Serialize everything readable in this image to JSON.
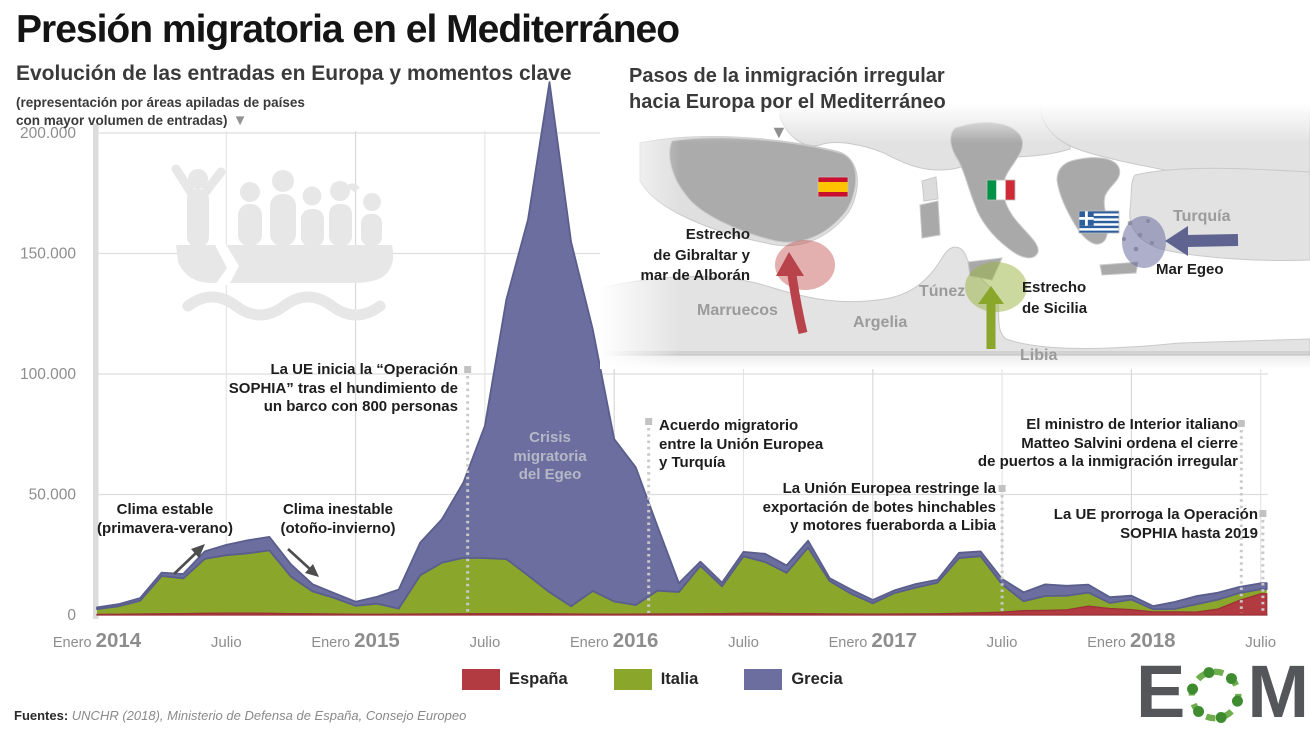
{
  "title": "Presión migratoria en el Mediterráneo",
  "subtitle": "Evolución de las entradas en Europa y momentos clave",
  "subtitle_note": "(representación por áreas apiladas de países\ncon mayor volumen de entradas)",
  "icons": {
    "down_triangle": "▼"
  },
  "map": {
    "title": "Pasos de la inmigración irregular\nhacia Europa por el Mediterráneo",
    "labels": {
      "gibraltar": "Estrecho\nde Gibraltar y\nmar de Alborán",
      "sicilia": "Estrecho\nde Sicilia",
      "egeo": "Mar Egeo",
      "marruecos": "Marruecos",
      "argelia": "Argelia",
      "tunez": "Túnez",
      "libia": "Libia",
      "turquia": "Turquía"
    },
    "flag_countries": [
      "España",
      "Italia",
      "Grecia"
    ]
  },
  "annotations": {
    "clima_estable": "Clima estable\n(primavera-verano)",
    "clima_inestable": "Clima inestable\n(otoño-invierno)",
    "sophia": "La UE inicia la “Operación\nSOPHIA” tras el hundimiento de\nun barco con 800 personas",
    "crisis_egeo": "Crisis\nmigratoria\ndel Egeo",
    "acuerdo": "Acuerdo migratorio\nentre la Unión Europea\ny Turquía",
    "botes": "La Unión Europea restringe la\nexportación de botes hinchables\ny motores fueraborda a Libia",
    "salvini": "El ministro de Interior italiano\nMatteo Salvini ordena el cierre\nde puertos a la inmigración irregular",
    "prorroga": "La UE prorroga la Operación\nSOPHIA hasta 2019"
  },
  "legend": {
    "items": [
      {
        "label": "España",
        "color": "#b23a41"
      },
      {
        "label": "Italia",
        "color": "#8aa62b"
      },
      {
        "label": "Grecia",
        "color": "#6b6e9e"
      }
    ]
  },
  "footer": {
    "prefix": "Fuentes:",
    "sources": " UNCHR (2018), Ministerio de Defensa de España, Consejo Europeo"
  },
  "logo": {
    "e": "E",
    "m": "M"
  },
  "chart_data": {
    "type": "area",
    "stacked": true,
    "title": "Evolución de las entradas en Europa y momentos clave",
    "xlabel": "",
    "ylabel": "",
    "x_start": "2014-01",
    "x_end": "2018-07",
    "x_step": "month",
    "ylim": [
      0,
      200000
    ],
    "grid": true,
    "legend_position": "bottom",
    "y_tick_labels": [
      "0",
      "50.000",
      "100.000",
      "150.000",
      "200.000"
    ],
    "x_tick_labels": [
      [
        "Enero",
        "2014"
      ],
      [
        "Julio",
        ""
      ],
      [
        "Enero",
        "2015"
      ],
      [
        "Julio",
        ""
      ],
      [
        "Enero",
        "2016"
      ],
      [
        "Julio",
        ""
      ],
      [
        "Enero",
        "2017"
      ],
      [
        "Julio",
        ""
      ],
      [
        "Enero",
        "2018"
      ],
      [
        "Julio",
        ""
      ]
    ],
    "series": [
      {
        "name": "España",
        "color": "#b23a41",
        "values": [
          250,
          300,
          400,
          500,
          600,
          700,
          800,
          800,
          700,
          600,
          500,
          400,
          300,
          300,
          350,
          400,
          450,
          500,
          600,
          600,
          550,
          500,
          400,
          350,
          300,
          350,
          400,
          450,
          500,
          600,
          700,
          700,
          600,
          550,
          450,
          400,
          350,
          400,
          450,
          500,
          700,
          900,
          1200,
          1800,
          1900,
          2100,
          3700,
          2700,
          2200,
          1300,
          1300,
          1200,
          2400,
          6000,
          8800
        ]
      },
      {
        "name": "Italia",
        "color": "#8aa62b",
        "values": [
          2200,
          3300,
          5500,
          15700,
          14600,
          22600,
          24000,
          24800,
          26100,
          15300,
          9300,
          6700,
          3500,
          4400,
          2300,
          16100,
          21200,
          23200,
          23000,
          22600,
          15900,
          8900,
          3200,
          9600,
          5300,
          3800,
          9700,
          9100,
          19900,
          11300,
          23600,
          21300,
          16900,
          27400,
          13600,
          8400,
          4500,
          8700,
          10900,
          12900,
          22900,
          23500,
          11500,
          3900,
          6000,
          5900,
          5600,
          2300,
          4200,
          1100,
          1200,
          3200,
          3900,
          3100,
          1900
        ]
      },
      {
        "name": "Grecia",
        "color": "#6b6e9e",
        "values": [
          700,
          900,
          1100,
          1400,
          1800,
          3100,
          4300,
          5400,
          5600,
          5100,
          3000,
          2000,
          1700,
          2900,
          7900,
          13600,
          18000,
          31300,
          54900,
          107800,
          147600,
          211700,
          151200,
          108700,
          67400,
          57100,
          26900,
          3700,
          1700,
          1500,
          1900,
          3400,
          3100,
          2900,
          1200,
          1700,
          1400,
          1100,
          1500,
          1200,
          2200,
          2000,
          2300,
          3700,
          4800,
          4100,
          3300,
          2400,
          1600,
          1300,
          2900,
          3400,
          2900,
          2500,
          2500
        ]
      }
    ],
    "events": [
      {
        "name": "sophia",
        "date": "2015-06",
        "month_index": 17.2
      },
      {
        "name": "acuerdo",
        "date": "2016-03",
        "month_index": 25.6
      },
      {
        "name": "botes",
        "date": "2017-07",
        "month_index": 42.0
      },
      {
        "name": "salvini",
        "date": "2018-06",
        "month_index": 53.1
      },
      {
        "name": "prorroga",
        "date": "2018-07",
        "month_index": 54.1
      }
    ]
  }
}
